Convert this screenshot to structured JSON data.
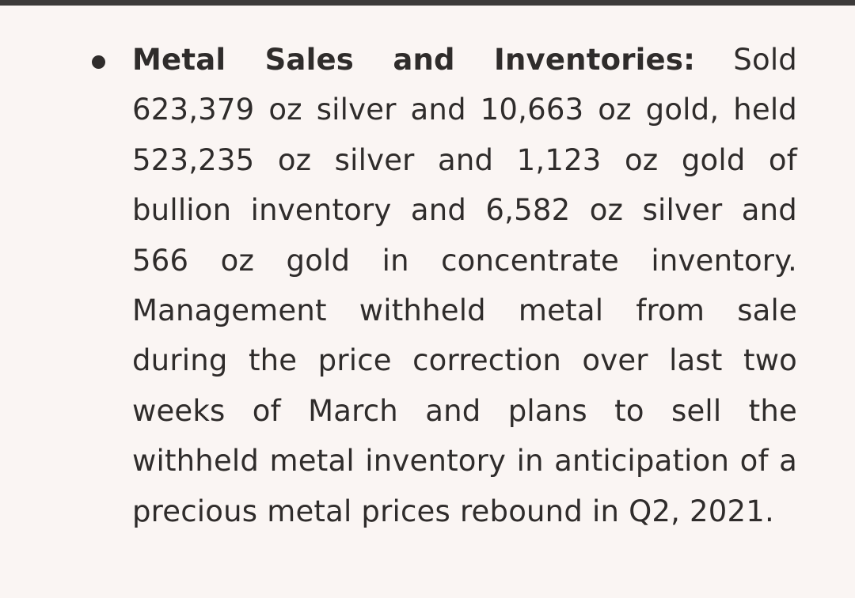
{
  "document": {
    "bullet": {
      "heading": "Metal Sales and Inventories:",
      "body": "Sold 623,379 oz silver and 10,663 oz gold, held 523,235 oz silver and 1,123 oz gold of bullion inventory and 6,582 oz silver and 566 oz gold in concentrate inventory. Management withheld metal from sale during the price correction over last two weeks of March and plans to sell the withheld metal inventory in anticipation of a precious metal prices rebound in Q2, 2021."
    }
  }
}
